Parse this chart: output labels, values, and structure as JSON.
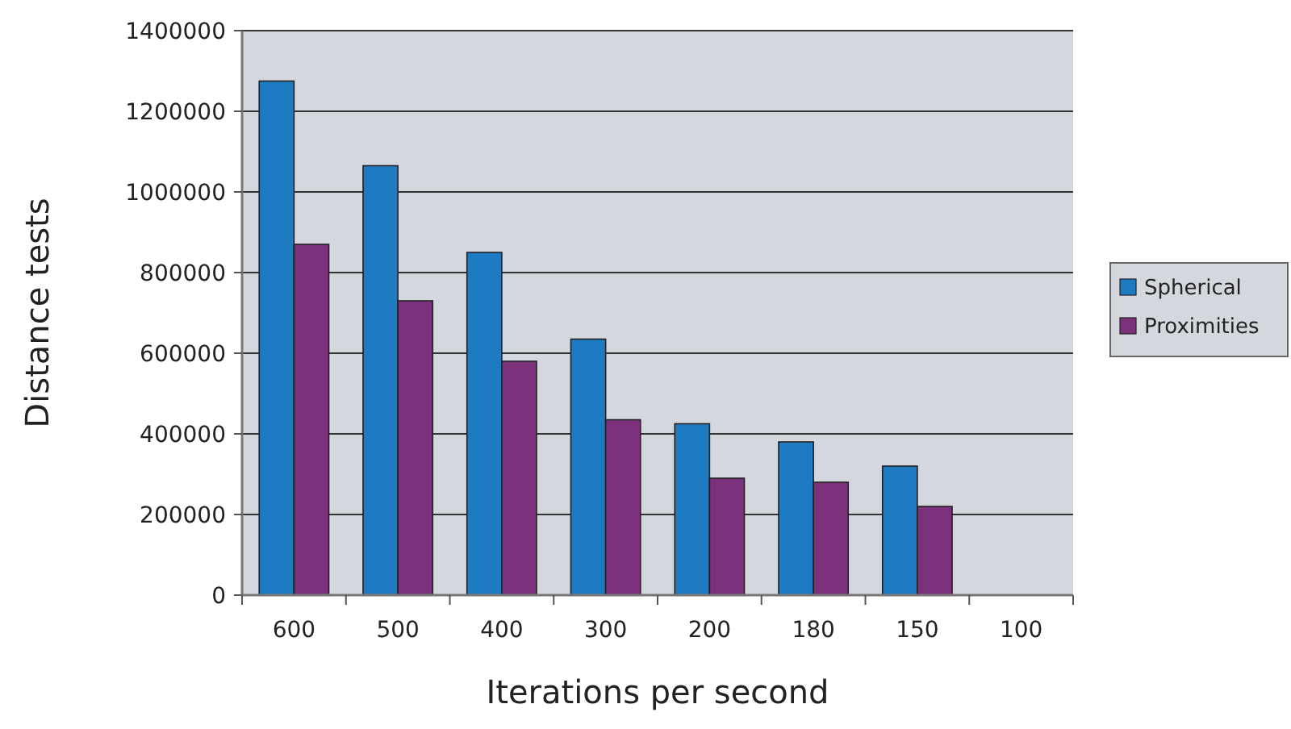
{
  "chart_data": {
    "type": "bar",
    "xlabel": "Iterations per second",
    "ylabel": "Distance tests",
    "categories": [
      "600",
      "500",
      "400",
      "300",
      "200",
      "180",
      "150",
      "100"
    ],
    "series": [
      {
        "name": "Spherical",
        "color": "#1f7bc1",
        "values": [
          1275000,
          1065000,
          850000,
          635000,
          425000,
          380000,
          320000,
          null
        ]
      },
      {
        "name": "Proximities",
        "color": "#7b317b",
        "values": [
          870000,
          730000,
          580000,
          435000,
          290000,
          280000,
          220000,
          null
        ]
      }
    ],
    "ylim": [
      0,
      1400000
    ],
    "yticks": [
      0,
      200000,
      400000,
      600000,
      800000,
      1000000,
      1200000,
      1400000
    ],
    "grid": "y",
    "legend": "right"
  }
}
